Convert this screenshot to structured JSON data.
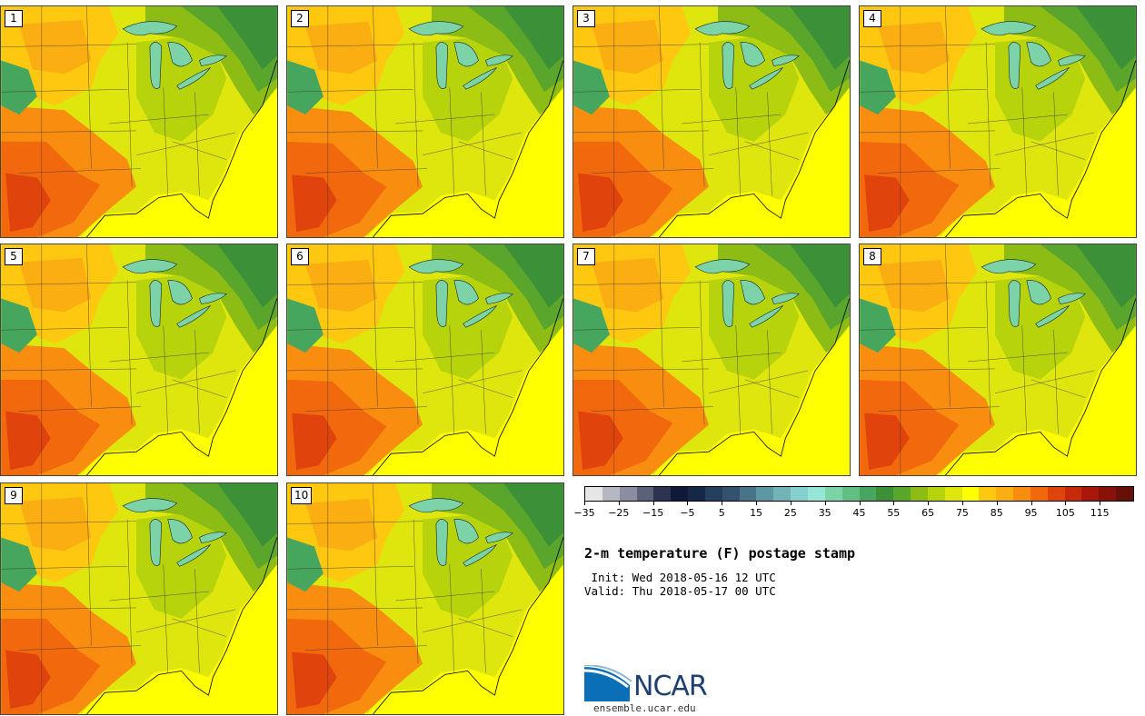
{
  "stamps": [
    {
      "label": "1",
      "variant": 0
    },
    {
      "label": "2",
      "variant": 1
    },
    {
      "label": "3",
      "variant": 2
    },
    {
      "label": "4",
      "variant": 3
    },
    {
      "label": "5",
      "variant": 4
    },
    {
      "label": "6",
      "variant": 5
    },
    {
      "label": "7",
      "variant": 6
    },
    {
      "label": "8",
      "variant": 7
    },
    {
      "label": "9",
      "variant": 8
    },
    {
      "label": "10",
      "variant": 9
    }
  ],
  "colorbar": {
    "min": -35,
    "max": 120,
    "step": 5,
    "tick_labels": [
      "−35",
      "−25",
      "−15",
      "−5",
      "5",
      "15",
      "25",
      "35",
      "45",
      "55",
      "65",
      "75",
      "85",
      "95",
      "105",
      "115"
    ],
    "colors": [
      "#e6e6e6",
      "#b5b8c2",
      "#8a8ea0",
      "#5b6178",
      "#2c3450",
      "#101a38",
      "#162847",
      "#253f60",
      "#33526f",
      "#477587",
      "#5d97a1",
      "#72b3b8",
      "#86d0ce",
      "#96e6d8",
      "#7dd3a8",
      "#61bf83",
      "#47a65d",
      "#3c9037",
      "#5aa52c",
      "#8dbd14",
      "#b6d30c",
      "#dfe60e",
      "#ffff00",
      "#fdc80f",
      "#fbae12",
      "#f88d0f",
      "#f2680d",
      "#e0430c",
      "#c62a0b",
      "#a8170a",
      "#871209",
      "#661008"
    ]
  },
  "title": "2-m temperature (F) postage stamp",
  "init_label": " Init: Wed 2018-05-16 12 UTC",
  "valid_label": "Valid: Thu 2018-05-17 00 UTC",
  "logo": {
    "text": "NCAR",
    "url": "ensemble.ucar.edu",
    "blue": "#0a6fb7",
    "navy": "#1f3f73"
  },
  "map_colors": {
    "hot_dark": "#e0430c",
    "hot": "#f2680d",
    "warm": "#f88d0f",
    "orange": "#fbae12",
    "amber": "#fdc80f",
    "yellow": "#ffff00",
    "lime": "#dfe60e",
    "ygreen": "#b6d30c",
    "green1": "#8dbd14",
    "green2": "#5aa52c",
    "green3": "#47a65d",
    "green4": "#3c9037",
    "lake": "#7dd3a8"
  }
}
